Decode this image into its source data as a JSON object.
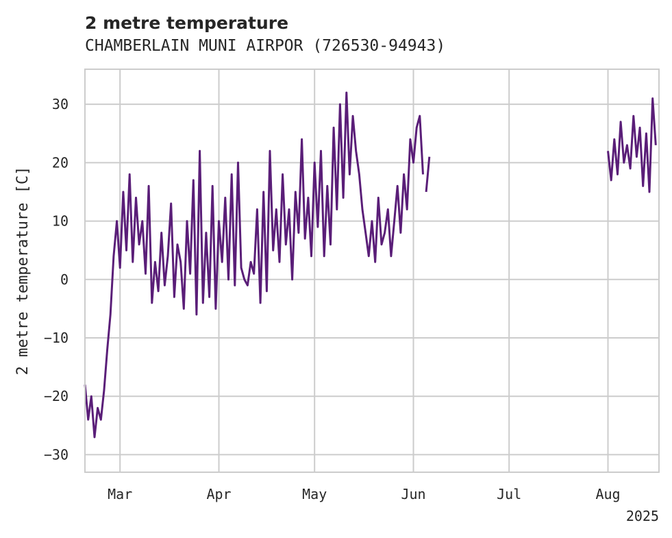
{
  "chart_data": {
    "type": "line",
    "title": "2 metre temperature",
    "subtitle": "CHAMBERLAIN MUNI AIRPOR (726530-94943)",
    "xlabel": "",
    "ylabel": "2 metre temperature [C]",
    "x_start": "2025-02-18",
    "x_end": "2025-08-17",
    "ylim": [
      -33,
      36
    ],
    "grid": true,
    "x_ticks": [
      {
        "label": "Mar",
        "date": "2025-03-01"
      },
      {
        "label": "Apr",
        "date": "2025-04-01"
      },
      {
        "label": "May",
        "date": "2025-05-01"
      },
      {
        "label": "Jun",
        "date": "2025-06-01"
      },
      {
        "label": "Jul",
        "date": "2025-07-01"
      },
      {
        "label": "Aug",
        "date": "2025-08-01"
      }
    ],
    "x_year_label": "2025",
    "y_ticks": [
      -30,
      -20,
      -10,
      0,
      10,
      20,
      30
    ],
    "series": [
      {
        "color": "#5a1e78",
        "segments": [
          {
            "x": [
              "2025-02-18",
              "2025-02-19",
              "2025-02-20",
              "2025-02-21",
              "2025-02-22",
              "2025-02-23",
              "2025-02-24",
              "2025-02-25",
              "2025-02-26",
              "2025-02-27",
              "2025-02-28",
              "2025-03-01",
              "2025-03-02",
              "2025-03-03",
              "2025-03-04",
              "2025-03-05",
              "2025-03-06",
              "2025-03-07",
              "2025-03-08",
              "2025-03-09",
              "2025-03-10",
              "2025-03-11",
              "2025-03-12",
              "2025-03-13",
              "2025-03-14",
              "2025-03-15",
              "2025-03-16",
              "2025-03-17",
              "2025-03-18",
              "2025-03-19",
              "2025-03-20",
              "2025-03-21",
              "2025-03-22",
              "2025-03-23",
              "2025-03-24",
              "2025-03-25",
              "2025-03-26",
              "2025-03-27",
              "2025-03-28",
              "2025-03-29",
              "2025-03-30",
              "2025-03-31",
              "2025-04-01",
              "2025-04-02",
              "2025-04-03",
              "2025-04-04",
              "2025-04-05",
              "2025-04-06",
              "2025-04-07",
              "2025-04-08",
              "2025-04-09",
              "2025-04-10",
              "2025-04-11",
              "2025-04-12",
              "2025-04-13",
              "2025-04-14",
              "2025-04-15",
              "2025-04-16",
              "2025-04-17",
              "2025-04-18",
              "2025-04-19",
              "2025-04-20",
              "2025-04-21",
              "2025-04-22",
              "2025-04-23",
              "2025-04-24",
              "2025-04-25",
              "2025-04-26",
              "2025-04-27",
              "2025-04-28",
              "2025-04-29",
              "2025-04-30",
              "2025-05-01",
              "2025-05-02",
              "2025-05-03",
              "2025-05-04",
              "2025-05-05",
              "2025-05-06",
              "2025-05-07",
              "2025-05-08",
              "2025-05-09",
              "2025-05-10",
              "2025-05-11",
              "2025-05-12",
              "2025-05-13",
              "2025-05-14",
              "2025-05-15",
              "2025-05-16",
              "2025-05-17",
              "2025-05-18",
              "2025-05-19",
              "2025-05-20",
              "2025-05-21",
              "2025-05-22",
              "2025-05-23",
              "2025-05-24",
              "2025-05-25",
              "2025-05-26",
              "2025-05-27",
              "2025-05-28",
              "2025-05-29",
              "2025-05-30",
              "2025-05-31",
              "2025-06-01",
              "2025-06-02",
              "2025-06-03",
              "2025-06-04"
            ],
            "y": [
              -18,
              -24,
              -20,
              -27,
              -22,
              -24,
              -19,
              -12,
              -6,
              4,
              10,
              2,
              15,
              5,
              18,
              3,
              14,
              6,
              10,
              1,
              16,
              -4,
              3,
              -2,
              8,
              -1,
              4,
              13,
              -3,
              6,
              3,
              -5,
              10,
              1,
              17,
              -6,
              22,
              -4,
              8,
              -3,
              16,
              -5,
              10,
              3,
              14,
              0,
              18,
              -1,
              20,
              2,
              0,
              -1,
              3,
              1,
              12,
              -4,
              15,
              -2,
              22,
              5,
              12,
              3,
              18,
              6,
              12,
              0,
              15,
              8,
              24,
              7,
              14,
              4,
              20,
              9,
              22,
              4,
              16,
              6,
              26,
              12,
              30,
              14,
              32,
              18,
              28,
              22,
              18,
              12,
              8,
              4,
              10,
              3,
              14,
              6,
              8,
              12,
              4,
              10,
              16,
              8,
              18,
              12,
              24,
              20,
              26,
              28,
              18
            ]
          },
          {
            "x": [
              "2025-06-05",
              "2025-06-06"
            ],
            "y": [
              15,
              21
            ]
          },
          {
            "x": [
              "2025-08-01",
              "2025-08-02",
              "2025-08-03",
              "2025-08-04",
              "2025-08-05",
              "2025-08-06",
              "2025-08-07",
              "2025-08-08",
              "2025-08-09",
              "2025-08-10",
              "2025-08-11",
              "2025-08-12",
              "2025-08-13",
              "2025-08-14",
              "2025-08-15",
              "2025-08-16"
            ],
            "y": [
              22,
              17,
              24,
              18,
              27,
              20,
              23,
              19,
              28,
              21,
              26,
              16,
              25,
              15,
              31,
              23
            ]
          }
        ]
      }
    ]
  }
}
